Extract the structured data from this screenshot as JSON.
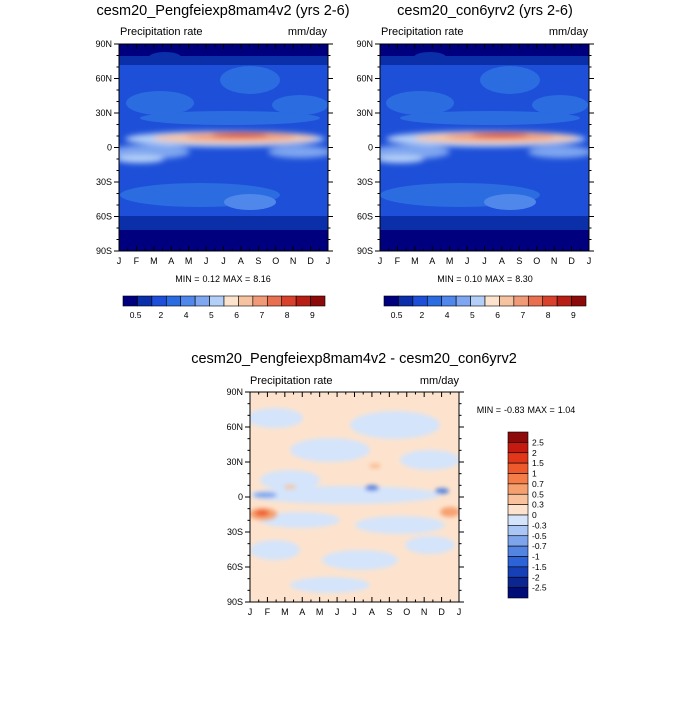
{
  "chart_data": [
    {
      "type": "heatmap",
      "title": "cesm20_Pengfeiexp8mam4v2 (yrs 2-6)",
      "variable_label": "Precipitation rate",
      "units": "mm/day",
      "x_tick_labels": [
        "J",
        "F",
        "M",
        "A",
        "M",
        "J",
        "J",
        "A",
        "S",
        "O",
        "N",
        "D",
        "J"
      ],
      "y_tick_labels": [
        "90N",
        "60N",
        "30N",
        "0",
        "30S",
        "60S",
        "90S"
      ],
      "xlim": [
        1,
        13
      ],
      "ylim": [
        -90,
        90
      ],
      "stat_min": "0.12",
      "stat_max": "8.16",
      "min_label": "MIN =",
      "max_label": "MAX =",
      "colorbar_orientation": "horizontal",
      "colorbar_tick_labels": [
        "0.5",
        "2",
        "4",
        "5",
        "6",
        "7",
        "8",
        "9"
      ],
      "colorbar_levels": [
        0.2,
        0.5,
        1,
        2,
        3,
        4,
        5,
        6,
        7,
        8,
        9,
        10
      ],
      "colorbar_colors": [
        "#00007f",
        "#0a2fa8",
        "#1d4fd8",
        "#2b6ce0",
        "#4f87ea",
        "#7fa6f0",
        "#b3cff7",
        "#fbe3cd",
        "#f6c3a0",
        "#f09a78",
        "#e86f4f",
        "#d8422c",
        "#b81f14",
        "#8c0a0a"
      ]
    },
    {
      "type": "heatmap",
      "title": "cesm20_con6yrv2 (yrs 2-6)",
      "variable_label": "Precipitation rate",
      "units": "mm/day",
      "x_tick_labels": [
        "J",
        "F",
        "M",
        "A",
        "M",
        "J",
        "J",
        "A",
        "S",
        "O",
        "N",
        "D",
        "J"
      ],
      "y_tick_labels": [
        "90N",
        "60N",
        "30N",
        "0",
        "30S",
        "60S",
        "90S"
      ],
      "xlim": [
        1,
        13
      ],
      "ylim": [
        -90,
        90
      ],
      "stat_min": "0.10",
      "stat_max": "8.30",
      "min_label": "MIN =",
      "max_label": "MAX =",
      "colorbar_orientation": "horizontal",
      "colorbar_tick_labels": [
        "0.5",
        "2",
        "4",
        "5",
        "6",
        "7",
        "8",
        "9"
      ],
      "colorbar_levels": [
        0.2,
        0.5,
        1,
        2,
        3,
        4,
        5,
        6,
        7,
        8,
        9,
        10
      ],
      "colorbar_colors": [
        "#00007f",
        "#0a2fa8",
        "#1d4fd8",
        "#2b6ce0",
        "#4f87ea",
        "#7fa6f0",
        "#b3cff7",
        "#fbe3cd",
        "#f6c3a0",
        "#f09a78",
        "#e86f4f",
        "#d8422c",
        "#b81f14",
        "#8c0a0a"
      ]
    },
    {
      "type": "heatmap",
      "title": "cesm20_Pengfeiexp8mam4v2 - cesm20_con6yrv2",
      "variable_label": "Precipitation rate",
      "units": "mm/day",
      "x_tick_labels": [
        "J",
        "F",
        "M",
        "A",
        "M",
        "J",
        "J",
        "A",
        "S",
        "O",
        "N",
        "D",
        "J"
      ],
      "y_tick_labels": [
        "90N",
        "60N",
        "30N",
        "0",
        "30S",
        "60S",
        "90S"
      ],
      "xlim": [
        1,
        13
      ],
      "ylim": [
        -90,
        90
      ],
      "stat_min": "-0.83",
      "stat_max": "1.04",
      "min_label": "MIN =",
      "max_label": "MAX =",
      "colorbar_orientation": "vertical",
      "colorbar_tick_labels": [
        "2.5",
        "2",
        "1.5",
        "1",
        "0.7",
        "0.5",
        "0.3",
        "0",
        "-0.3",
        "-0.5",
        "-0.7",
        "-1",
        "-1.5",
        "-2",
        "-2.5"
      ],
      "colorbar_levels": [
        2.5,
        2,
        1.5,
        1,
        0.7,
        0.5,
        0.3,
        0,
        -0.3,
        -0.5,
        -0.7,
        -1,
        -1.5,
        -2,
        -2.5
      ],
      "colorbar_colors": [
        "#8c0a0a",
        "#c41a10",
        "#e0361a",
        "#ef5a2c",
        "#f47d48",
        "#f6a070",
        "#f9c29c",
        "#fde3cd",
        "#d4e4fb",
        "#a9c6f4",
        "#7ea5ec",
        "#5484e2",
        "#2d63d8",
        "#1540b8",
        "#0b2591",
        "#000c78"
      ]
    }
  ]
}
